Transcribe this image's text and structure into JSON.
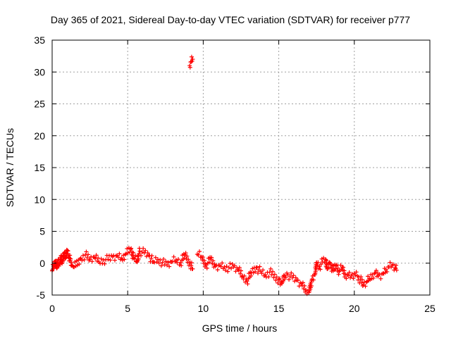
{
  "chart_data": {
    "type": "scatter",
    "title": "Day 365 of 2021, Sidereal Day-to-day VTEC variation (SDTVAR) for receiver p777",
    "xlabel": "GPS time / hours",
    "ylabel": "SDTVAR / TECUs",
    "xlim": [
      0,
      25
    ],
    "ylim": [
      -5,
      35
    ],
    "xticks": [
      0,
      5,
      10,
      15,
      20,
      25
    ],
    "yticks": [
      -5,
      0,
      5,
      10,
      15,
      20,
      25,
      30,
      35
    ],
    "grid": true,
    "legend": "none",
    "series": [
      {
        "name": "SDTVAR",
        "color": "#ff0000",
        "marker": "plus",
        "points": [
          [
            0.0,
            -1.2
          ],
          [
            0.1,
            -0.5
          ],
          [
            0.2,
            0.3
          ],
          [
            0.3,
            -0.8
          ],
          [
            0.4,
            0.6
          ],
          [
            0.5,
            -0.2
          ],
          [
            0.6,
            1.2
          ],
          [
            0.7,
            0.2
          ],
          [
            0.8,
            1.6
          ],
          [
            0.9,
            0.8
          ],
          [
            1.0,
            2.0
          ],
          [
            1.1,
            1.2
          ],
          [
            1.2,
            0.4
          ],
          [
            1.3,
            -0.4
          ],
          [
            1.4,
            -0.6
          ],
          [
            1.9,
            0.8
          ],
          [
            2.2,
            1.3
          ],
          [
            2.5,
            0.6
          ],
          [
            2.8,
            0.9
          ],
          [
            3.1,
            0.2
          ],
          [
            3.4,
            0.5
          ],
          [
            3.7,
            0.6
          ],
          [
            4.0,
            1.0
          ],
          [
            4.3,
            1.2
          ],
          [
            4.6,
            0.8
          ],
          [
            4.9,
            1.5
          ],
          [
            5.2,
            2.2
          ],
          [
            5.4,
            0.8
          ],
          [
            5.6,
            0.3
          ],
          [
            5.8,
            1.9
          ],
          [
            6.1,
            1.6
          ],
          [
            6.4,
            1.2
          ],
          [
            6.7,
            0.2
          ],
          [
            7.0,
            0.6
          ],
          [
            7.3,
            0.1
          ],
          [
            7.6,
            -0.3
          ],
          [
            7.9,
            0.2
          ],
          [
            8.2,
            0.5
          ],
          [
            8.5,
            0.1
          ],
          [
            8.8,
            1.3
          ],
          [
            9.1,
            0.1
          ],
          [
            9.3,
            -0.9
          ],
          [
            9.1,
            31.0
          ],
          [
            9.2,
            31.6
          ],
          [
            9.3,
            32.0
          ],
          [
            9.6,
            1.4
          ],
          [
            9.9,
            1.0
          ],
          [
            10.2,
            -0.3
          ],
          [
            10.5,
            0.6
          ],
          [
            10.8,
            -0.5
          ],
          [
            11.1,
            -0.3
          ],
          [
            11.4,
            -0.6
          ],
          [
            11.7,
            -0.7
          ],
          [
            12.0,
            -0.6
          ],
          [
            12.3,
            -1.0
          ],
          [
            12.6,
            -2.0
          ],
          [
            12.9,
            -2.8
          ],
          [
            13.2,
            -1.5
          ],
          [
            13.5,
            -0.7
          ],
          [
            13.8,
            -1.3
          ],
          [
            14.1,
            -1.8
          ],
          [
            14.4,
            -1.4
          ],
          [
            15.0,
            -2.6
          ],
          [
            15.2,
            -3.2
          ],
          [
            15.4,
            -2.0
          ],
          [
            15.6,
            -1.8
          ],
          [
            15.9,
            -2.3
          ],
          [
            16.2,
            -2.7
          ],
          [
            16.5,
            -3.2
          ],
          [
            16.8,
            -4.2
          ],
          [
            17.0,
            -4.6
          ],
          [
            17.2,
            -2.5
          ],
          [
            17.4,
            -1.8
          ],
          [
            17.5,
            0.1
          ],
          [
            17.7,
            -0.5
          ],
          [
            17.9,
            0.2
          ],
          [
            18.1,
            0.6
          ],
          [
            18.2,
            -0.9
          ],
          [
            18.4,
            0.0
          ],
          [
            18.6,
            -1.2
          ],
          [
            18.8,
            -0.4
          ],
          [
            19.0,
            -1.3
          ],
          [
            19.2,
            -0.6
          ],
          [
            19.4,
            -1.7
          ],
          [
            19.6,
            -1.9
          ],
          [
            19.8,
            -2.0
          ],
          [
            20.0,
            -1.6
          ],
          [
            20.2,
            -2.0
          ],
          [
            20.4,
            -2.6
          ],
          [
            20.6,
            -3.4
          ],
          [
            20.8,
            -3.0
          ],
          [
            21.0,
            -2.4
          ],
          [
            21.2,
            -1.8
          ],
          [
            21.4,
            -1.5
          ],
          [
            21.6,
            -2.0
          ],
          [
            21.9,
            -1.6
          ],
          [
            22.1,
            -1.0
          ],
          [
            22.3,
            -0.6
          ],
          [
            22.5,
            -0.4
          ],
          [
            22.7,
            -0.7
          ],
          [
            22.8,
            -1.1
          ]
        ]
      }
    ]
  }
}
